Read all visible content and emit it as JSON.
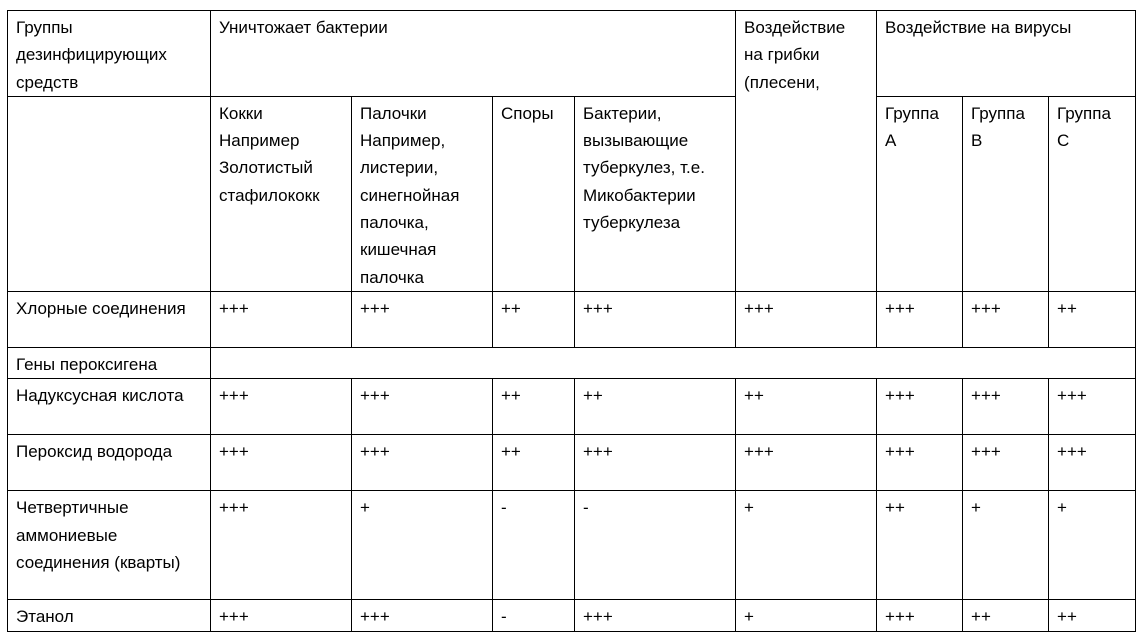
{
  "header": {
    "groups": "Группы дезинфицирующих средств",
    "bacteria": "Уничтожает бактерии",
    "fungi": "Воздействие на грибки (плесени,",
    "viruses": "Воздействие на вирусы",
    "sub": [
      "Кокки Например Золотистый стафилококк",
      "Палочки Например, листерии, синегнойная палочка, кишечная палочка",
      "Споры",
      "Бактерии, вызывающие туберкулез, т.е. Микобактерии туберкулеза"
    ],
    "virus_groups": [
      "Группа А",
      "Группа В",
      "Группа С"
    ]
  },
  "rows": [
    {
      "name": "Хлорные соединения",
      "values": [
        "+++",
        "+++",
        "++",
        "+++",
        "+++",
        "+++",
        "+++",
        "++"
      ]
    },
    {
      "name": "Гены пероксигена",
      "values": []
    },
    {
      "name": "Надуксусная кислота",
      "values": [
        "+++",
        "+++",
        "++",
        "++",
        "++",
        "+++",
        "+++",
        "+++"
      ]
    },
    {
      "name": "Пероксид водорода",
      "values": [
        "+++",
        "+++",
        "++",
        "+++",
        "+++",
        "+++",
        "+++",
        "+++"
      ]
    },
    {
      "name": "Четвертичные аммониевые соединения (кварты)",
      "values": [
        "+++",
        "+",
        "-",
        "-",
        "+",
        "++",
        "+",
        "+"
      ]
    },
    {
      "name": "Этанол",
      "values": [
        "+++",
        "+++",
        "-",
        "+++",
        "+",
        "+++",
        "++",
        "++"
      ]
    }
  ]
}
